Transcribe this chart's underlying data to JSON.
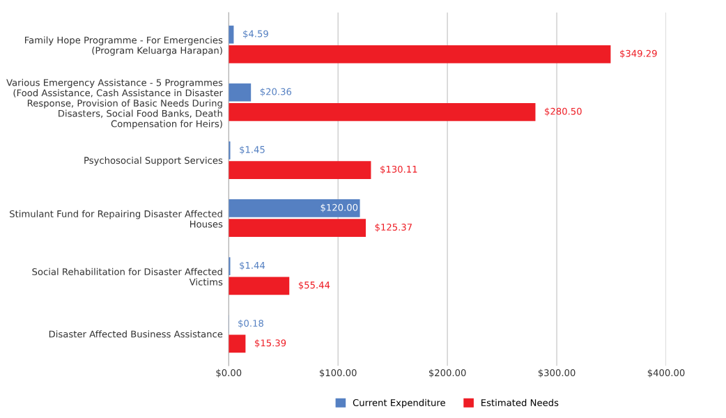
{
  "chart_data": {
    "type": "bar",
    "orientation": "horizontal",
    "categories": [
      "Family Hope Programme - For Emergencies\n(Program Keluarga Harapan)",
      "Various Emergency Assistance - 5 Programmes\n(Food Assistance, Cash Assistance in Disaster\nResponse, Provision of Basic Needs During\nDisasters, Social Food Banks, Death\nCompensation for Heirs)",
      "Psychosocial Support Services",
      "Stimulant Fund for Repairing Disaster Affected\nHouses",
      "Social Rehabilitation for Disaster Affected\nVictims",
      "Disaster Affected Business Assistance"
    ],
    "series": [
      {
        "name": "Current Expenditure",
        "color": "#5580c2",
        "values": [
          4.59,
          20.36,
          1.45,
          120.0,
          1.44,
          0.18
        ],
        "value_labels": [
          "$4.59",
          "$20.36",
          "$1.45",
          "$120.00",
          "$1.44",
          "$0.18"
        ]
      },
      {
        "name": "Estimated Needs",
        "color": "#ee1d25",
        "values": [
          349.29,
          280.5,
          130.11,
          125.37,
          55.44,
          15.39
        ],
        "value_labels": [
          "$349.29",
          "$280.50",
          "$130.11",
          "$125.37",
          "$55.44",
          "$15.39"
        ]
      }
    ],
    "xlim": [
      0,
      400
    ],
    "xticks": [
      {
        "value": 0,
        "label": "$0.00"
      },
      {
        "value": 100,
        "label": "$100.00"
      },
      {
        "value": 200,
        "label": "$200.00"
      },
      {
        "value": 300,
        "label": "$300.00"
      },
      {
        "value": 400,
        "label": "$400.00"
      }
    ],
    "grid": "x",
    "legend": "bottom"
  }
}
